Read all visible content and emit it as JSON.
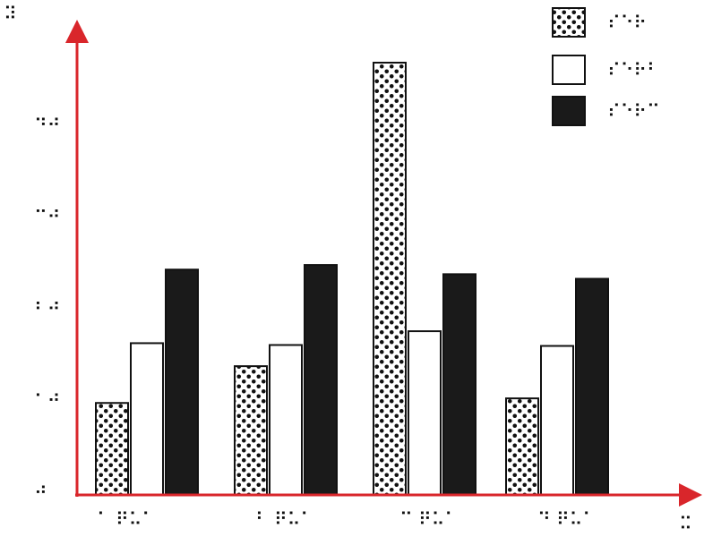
{
  "chart_data": {
    "type": "bar",
    "title": "",
    "xlabel": "",
    "ylabel": "",
    "ylim": [
      0,
      4.7
    ],
    "y_ticks": [
      {
        "value": 0,
        "label": "⠚"
      },
      {
        "value": 1,
        "label": "⠁⠚"
      },
      {
        "value": 2,
        "label": "⠃⠚"
      },
      {
        "value": 3,
        "label": "⠉⠚"
      },
      {
        "value": 4,
        "label": "⠙⠚"
      }
    ],
    "x_axis_end_label": "⠭",
    "y_axis_end_label": "⠽",
    "categories": [
      "⠁ ⠟⠥⠁",
      "⠃ ⠟⠥⠁",
      "⠉ ⠟⠥⠁",
      "⠙ ⠟⠥⠁"
    ],
    "series": [
      {
        "name": "⠎⠑⠗",
        "pattern": "dots",
        "values": [
          1.0,
          1.4,
          4.7,
          1.05
        ]
      },
      {
        "name": "⠎⠑⠗⠃",
        "pattern": "white",
        "values": [
          1.65,
          1.63,
          1.78,
          1.62
        ]
      },
      {
        "name": "⠎⠑⠗⠉",
        "pattern": "black",
        "values": [
          2.45,
          2.5,
          2.4,
          2.35
        ]
      }
    ],
    "grid": false,
    "legend_position": "top-right",
    "colors": {
      "axis": "#d9262b",
      "bar_black": "#1a1a1a",
      "bar_white": "#ffffff",
      "bar_stroke": "#111111"
    }
  }
}
